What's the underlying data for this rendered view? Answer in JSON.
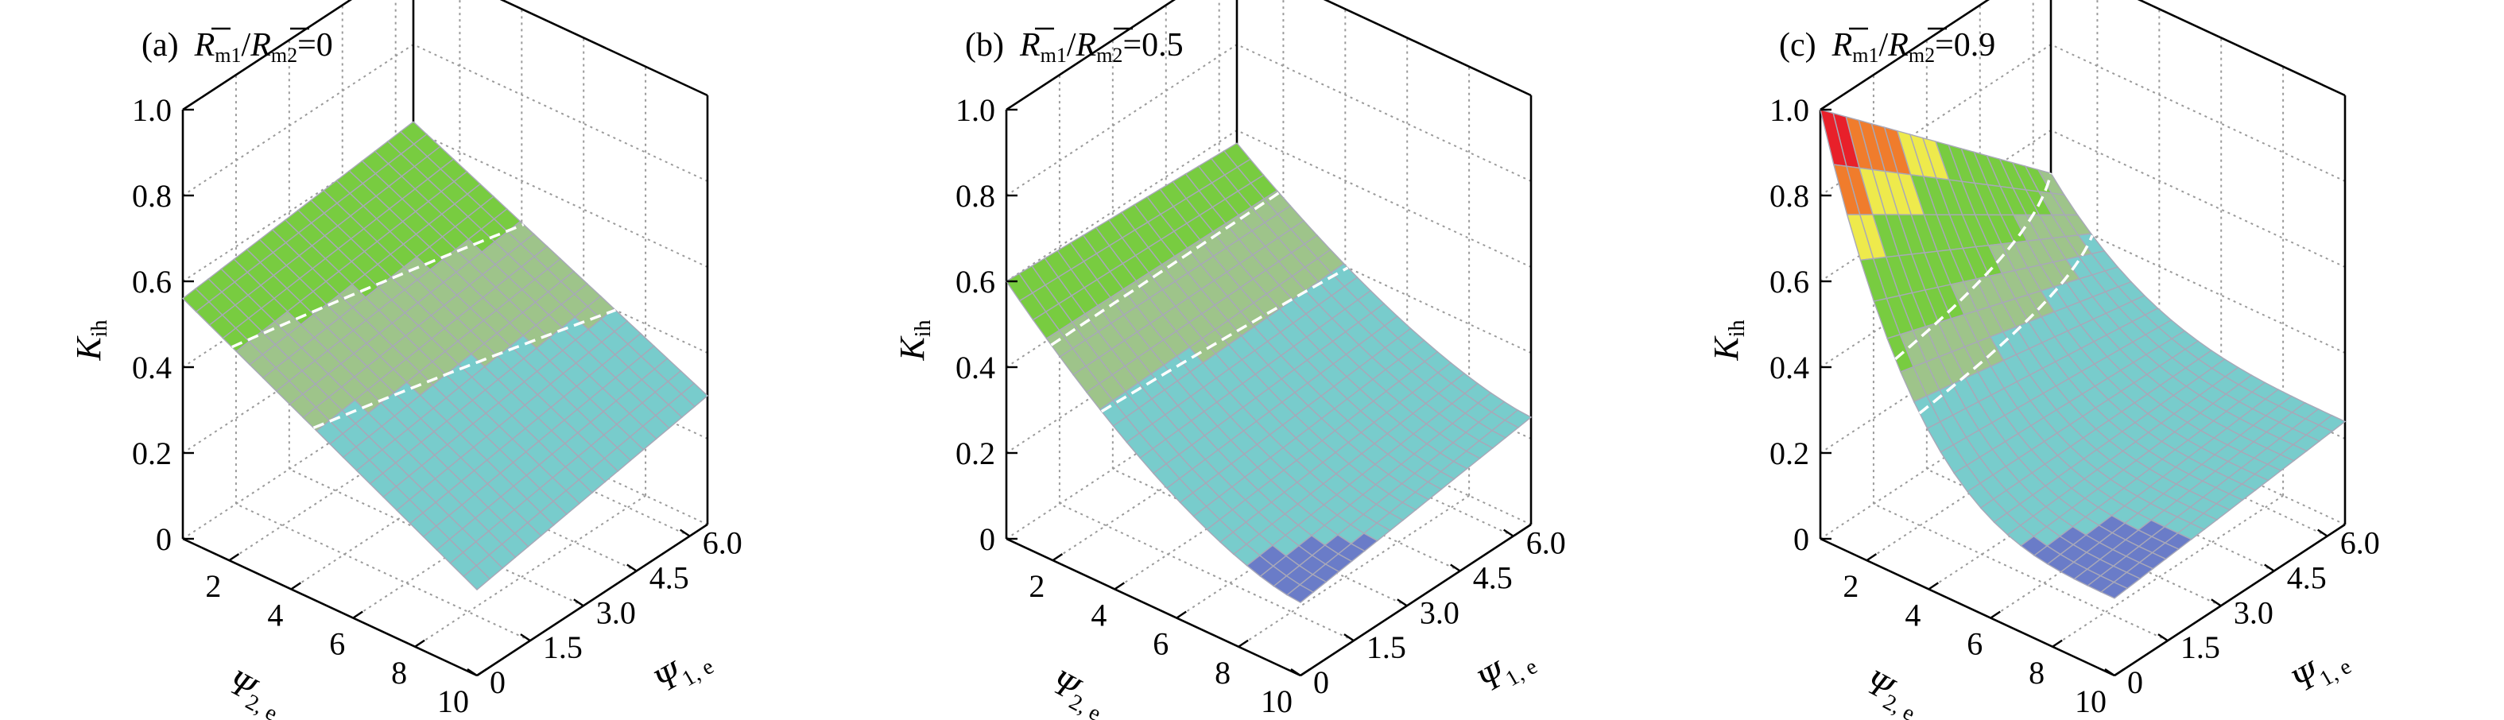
{
  "chart_data": [
    {
      "type": "surface3d",
      "panel_label": "(a)",
      "ratio_num": "R",
      "ratio_num_sub": "m1",
      "ratio_slash": "/",
      "ratio_den": "R",
      "ratio_den_sub": "m2",
      "ratio_value": "=0",
      "zlabel": "K",
      "zlabel_sub": "ih",
      "xlabel": "Ψ",
      "xlabel_sub": "2, e",
      "ylabel": "Ψ",
      "ylabel_sub": "1, e",
      "zlim": [
        0,
        1.0
      ],
      "z_ticks": [
        "0",
        "0.2",
        "0.4",
        "0.6",
        "0.8",
        "1.0"
      ],
      "x_ticks": [
        "2",
        "4",
        "6",
        "8",
        "10"
      ],
      "x_tick_values": [
        2,
        4,
        6,
        8,
        10
      ],
      "xlim": [
        0.5,
        10
      ],
      "y_ticks": [
        "0",
        "1.5",
        "3.0",
        "4.5",
        "6.0"
      ],
      "y_tick_values": [
        0,
        1.5,
        3.0,
        4.5,
        6.0
      ],
      "ylim": [
        0,
        6.5
      ],
      "grid": true,
      "contour_levels": [
        0.5,
        0.4
      ],
      "corner_values": {
        "psi2_0.5_psi1_0": 0.56,
        "psi2_0.5_psi1_6.5": 0.62,
        "psi2_10_psi1_0": 0.2,
        "psi2_10_psi1_6.5": 0.3
      },
      "shape": "linear"
    },
    {
      "type": "surface3d",
      "panel_label": "(b)",
      "ratio_num": "R",
      "ratio_num_sub": "m1",
      "ratio_slash": "/",
      "ratio_den": "R",
      "ratio_den_sub": "m2",
      "ratio_value": "=0.5",
      "zlabel": "K",
      "zlabel_sub": "ih",
      "xlabel": "Ψ",
      "xlabel_sub": "2, e",
      "ylabel": "Ψ",
      "ylabel_sub": "1, e",
      "zlim": [
        0,
        1.0
      ],
      "z_ticks": [
        "0",
        "0.2",
        "0.4",
        "0.6",
        "0.8",
        "1.0"
      ],
      "x_ticks": [
        "2",
        "4",
        "6",
        "8",
        "10"
      ],
      "x_tick_values": [
        2,
        4,
        6,
        8,
        10
      ],
      "xlim": [
        0.5,
        10
      ],
      "y_ticks": [
        "0",
        "1.5",
        "3.0",
        "4.5",
        "6.0"
      ],
      "y_tick_values": [
        0,
        1.5,
        3.0,
        4.5,
        6.0
      ],
      "ylim": [
        0,
        6.5
      ],
      "grid": true,
      "contour_levels": [
        0.5,
        0.4
      ],
      "corner_values": {
        "psi2_0.5_psi1_0": 0.6,
        "psi2_0.5_psi1_6.5": 0.57,
        "psi2_10_psi1_0": 0.17,
        "psi2_10_psi1_6.5": 0.25
      },
      "shape": "mild"
    },
    {
      "type": "surface3d",
      "panel_label": "(c)",
      "ratio_num": "R",
      "ratio_num_sub": "m1",
      "ratio_slash": "/",
      "ratio_den": "R",
      "ratio_den_sub": "m2",
      "ratio_value": "=0.9",
      "zlabel": "K",
      "zlabel_sub": "ih",
      "xlabel": "Ψ",
      "xlabel_sub": "2, e",
      "ylabel": "Ψ",
      "ylabel_sub": "1, e",
      "zlim": [
        0,
        1.0
      ],
      "z_ticks": [
        "0",
        "0.2",
        "0.4",
        "0.6",
        "0.8",
        "1.0"
      ],
      "x_ticks": [
        "2",
        "4",
        "6",
        "8",
        "10"
      ],
      "x_tick_values": [
        2,
        4,
        6,
        8,
        10
      ],
      "xlim": [
        0.5,
        10
      ],
      "y_ticks": [
        "0",
        "1.5",
        "3.0",
        "4.5",
        "6.0"
      ],
      "y_tick_values": [
        0,
        1.5,
        3.0,
        4.5,
        6.0
      ],
      "ylim": [
        0,
        6.5
      ],
      "grid": true,
      "contour_levels": [
        0.5,
        0.4
      ],
      "corner_values": {
        "psi2_0.5_psi1_0": 1.0,
        "psi2_0.5_psi1_6.5": 0.5,
        "psi2_10_psi1_0": 0.18,
        "psi2_10_psi1_6.5": 0.24
      },
      "shape": "sharp"
    }
  ],
  "colors": {
    "band_top": "#e8202a",
    "band_1": "#f07c2c",
    "band_2": "#eeea4c",
    "band_3": "#78cc40",
    "band_4": "#9ec48a",
    "band_5": "#78cccc",
    "band_low": "#6a7cc8",
    "mesh": "#a8a8b8",
    "grid": "#9a9a9a",
    "contour": "#ffffff"
  }
}
